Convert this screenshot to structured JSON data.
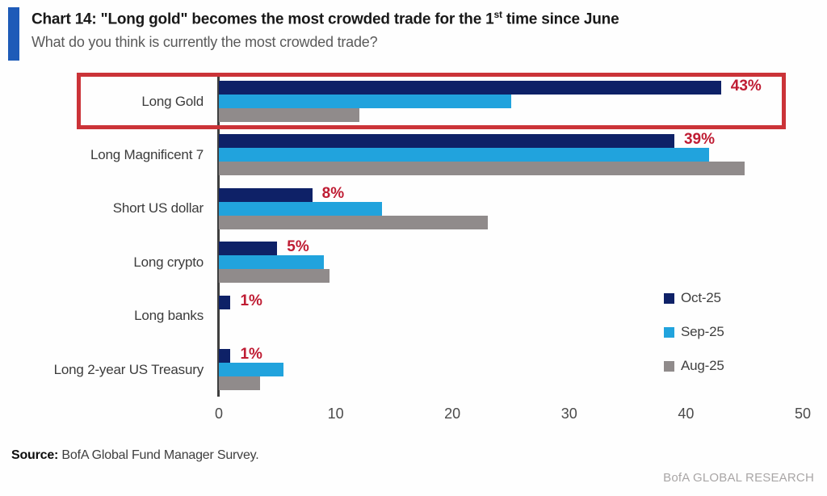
{
  "header": {
    "title_prefix": "Chart 14: \"Long gold\" becomes the most crowded trade for the 1",
    "title_sup": "st",
    "title_suffix": " time since June",
    "subtitle": "What do you think is currently the most crowded trade?",
    "accent_color": "#1e5bb8"
  },
  "chart_data": {
    "type": "bar",
    "orientation": "horizontal",
    "title": "Chart 14: \"Long gold\" becomes the most crowded trade for the 1st time since June",
    "question": "What do you think is currently the most crowded trade?",
    "categories": [
      "Long Gold",
      "Long Magnificent 7",
      "Short US dollar",
      "Long crypto",
      "Long banks",
      "Long 2-year US Treasury"
    ],
    "series": [
      {
        "name": "Oct-25",
        "color": "#0e2167",
        "values": [
          43,
          39,
          8,
          5,
          1,
          1
        ]
      },
      {
        "name": "Sep-25",
        "color": "#21a3dd",
        "values": [
          25,
          42,
          14,
          9,
          0,
          5.5
        ]
      },
      {
        "name": "Aug-25",
        "color": "#908b8b",
        "values": [
          12,
          45,
          23,
          9.5,
          0,
          3.5
        ]
      }
    ],
    "value_labels": [
      "43%",
      "39%",
      "8%",
      "5%",
      "1%",
      "1%"
    ],
    "value_label_color": "#bf1c33",
    "x_ticks": [
      "0",
      "10",
      "20",
      "30",
      "40",
      "50"
    ],
    "x_tick_values": [
      0,
      10,
      20,
      30,
      40,
      50
    ],
    "xlim": [
      0,
      50
    ],
    "grid": false,
    "legend_position": "right-middle",
    "highlight": {
      "category": "Long Gold",
      "box_color": "#cb3338"
    }
  },
  "source": {
    "label": "Source:",
    "text": " BofA Global Fund Manager Survey."
  },
  "footer": {
    "brand": "BofA GLOBAL RESEARCH"
  }
}
